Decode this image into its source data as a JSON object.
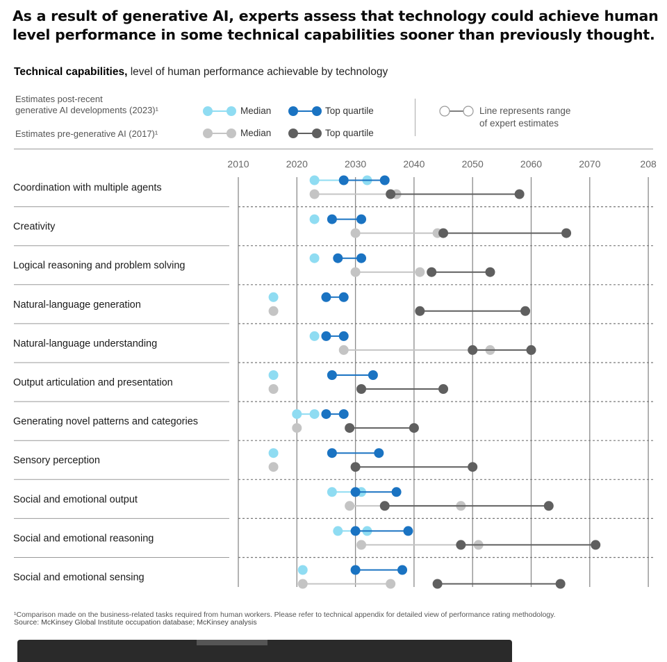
{
  "headline": "As a result of generative AI, experts assess that technology could achieve human level performance in some technical capabilities sooner than previously thought.",
  "subtitle": {
    "bold": "Technical capabilities,",
    "rest": " level of human performance achievable by technology"
  },
  "legend": {
    "post_line1": "Estimates post-recent",
    "post_line2": "generative AI developments (2023)¹",
    "pre_label": "Estimates pre-generative AI (2017)¹",
    "median": "Median",
    "top_quartile": "Top quartile",
    "range_line1": "Line represents range",
    "range_line2": "of expert estimates"
  },
  "colors": {
    "median_2023": "#8fdcf2",
    "top_2023": "#1a73c2",
    "median_2017": "#c4c4c4",
    "top_2017": "#5f5f5f"
  },
  "chart_data": {
    "type": "dumbbell",
    "x_ticks": [
      "2010",
      "2020",
      "2030",
      "2040",
      "2050",
      "2060",
      "2070",
      "208"
    ],
    "xlim": [
      2010,
      2080
    ],
    "series": [
      {
        "name": "Median (2023)"
      },
      {
        "name": "Top quartile (2023)"
      },
      {
        "name": "Median (2017)"
      },
      {
        "name": "Top quartile (2017)"
      }
    ],
    "categories": [
      {
        "label": "Coordination with multiple agents",
        "median_2023": [
          2023,
          2032
        ],
        "top_2023": [
          2028,
          2035
        ],
        "median_2017": [
          2023,
          2037
        ],
        "top_2017": [
          2036,
          2058
        ]
      },
      {
        "label": "Creativity",
        "median_2023": [
          2023,
          2023
        ],
        "top_2023": [
          2026,
          2031
        ],
        "median_2017": [
          2030,
          2044
        ],
        "top_2017": [
          2045,
          2066
        ]
      },
      {
        "label": "Logical reasoning and problem solving",
        "median_2023": [
          2023,
          2023
        ],
        "top_2023": [
          2027,
          2031
        ],
        "median_2017": [
          2030,
          2041
        ],
        "top_2017": [
          2043,
          2053
        ]
      },
      {
        "label": "Natural-language generation",
        "median_2023": [
          2016,
          2016
        ],
        "top_2023": [
          2025,
          2028
        ],
        "median_2017": [
          2016,
          2016
        ],
        "top_2017": [
          2041,
          2059
        ]
      },
      {
        "label": "Natural-language understanding",
        "median_2023": [
          2023,
          2023
        ],
        "top_2023": [
          2025,
          2028
        ],
        "median_2017": [
          2028,
          2053
        ],
        "top_2017": [
          2050,
          2060
        ]
      },
      {
        "label": "Output articulation and presentation",
        "median_2023": [
          2016,
          2016
        ],
        "top_2023": [
          2026,
          2033
        ],
        "median_2017": [
          2016,
          2016
        ],
        "top_2017": [
          2031,
          2045
        ]
      },
      {
        "label": "Generating novel patterns and categories",
        "median_2023": [
          2020,
          2023
        ],
        "top_2023": [
          2025,
          2028
        ],
        "median_2017": [
          2020,
          2020
        ],
        "top_2017": [
          2029,
          2040
        ]
      },
      {
        "label": "Sensory perception",
        "median_2023": [
          2016,
          2016
        ],
        "top_2023": [
          2026,
          2034
        ],
        "median_2017": [
          2016,
          2016
        ],
        "top_2017": [
          2030,
          2050
        ]
      },
      {
        "label": "Social and emotional output",
        "median_2023": [
          2026,
          2031
        ],
        "top_2023": [
          2030,
          2037
        ],
        "median_2017": [
          2029,
          2048
        ],
        "top_2017": [
          2035,
          2063
        ]
      },
      {
        "label": "Social and emotional reasoning",
        "median_2023": [
          2027,
          2032
        ],
        "top_2023": [
          2030,
          2039
        ],
        "median_2017": [
          2031,
          2051
        ],
        "top_2017": [
          2048,
          2071
        ]
      },
      {
        "label": "Social and emotional sensing",
        "median_2023": [
          2021,
          2021
        ],
        "top_2023": [
          2030,
          2038
        ],
        "median_2017": [
          2021,
          2036
        ],
        "top_2017": [
          2044,
          2065
        ]
      }
    ]
  },
  "footnote": {
    "note": "¹Comparison made on the business-related tasks required from human workers. Please refer to technical appendix for detailed view of performance rating methodology.",
    "source": "Source: McKinsey Global Institute occupation database; McKinsey analysis"
  }
}
